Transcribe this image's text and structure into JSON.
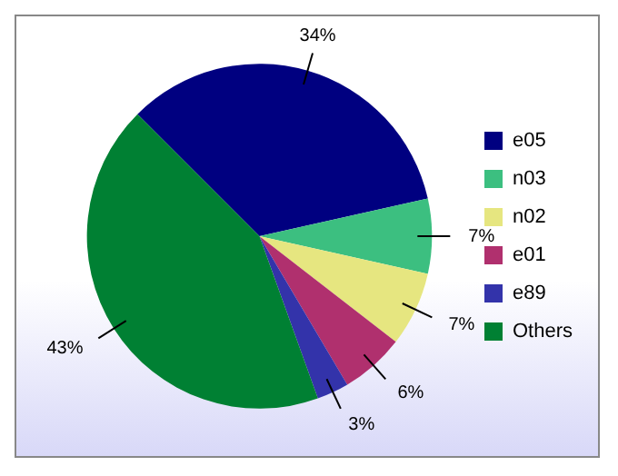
{
  "chart_data": {
    "type": "pie",
    "categories": [
      "e05",
      "n03",
      "n02",
      "e01",
      "e89",
      "Others"
    ],
    "values": [
      34,
      7,
      7,
      6,
      3,
      43
    ],
    "value_labels": [
      "34%",
      "7%",
      "7%",
      "6%",
      "3%",
      "43%"
    ],
    "colors": [
      "#000080",
      "#3cbf80",
      "#e6e680",
      "#b0306e",
      "#3333aa",
      "#008033"
    ],
    "legend": "right"
  }
}
